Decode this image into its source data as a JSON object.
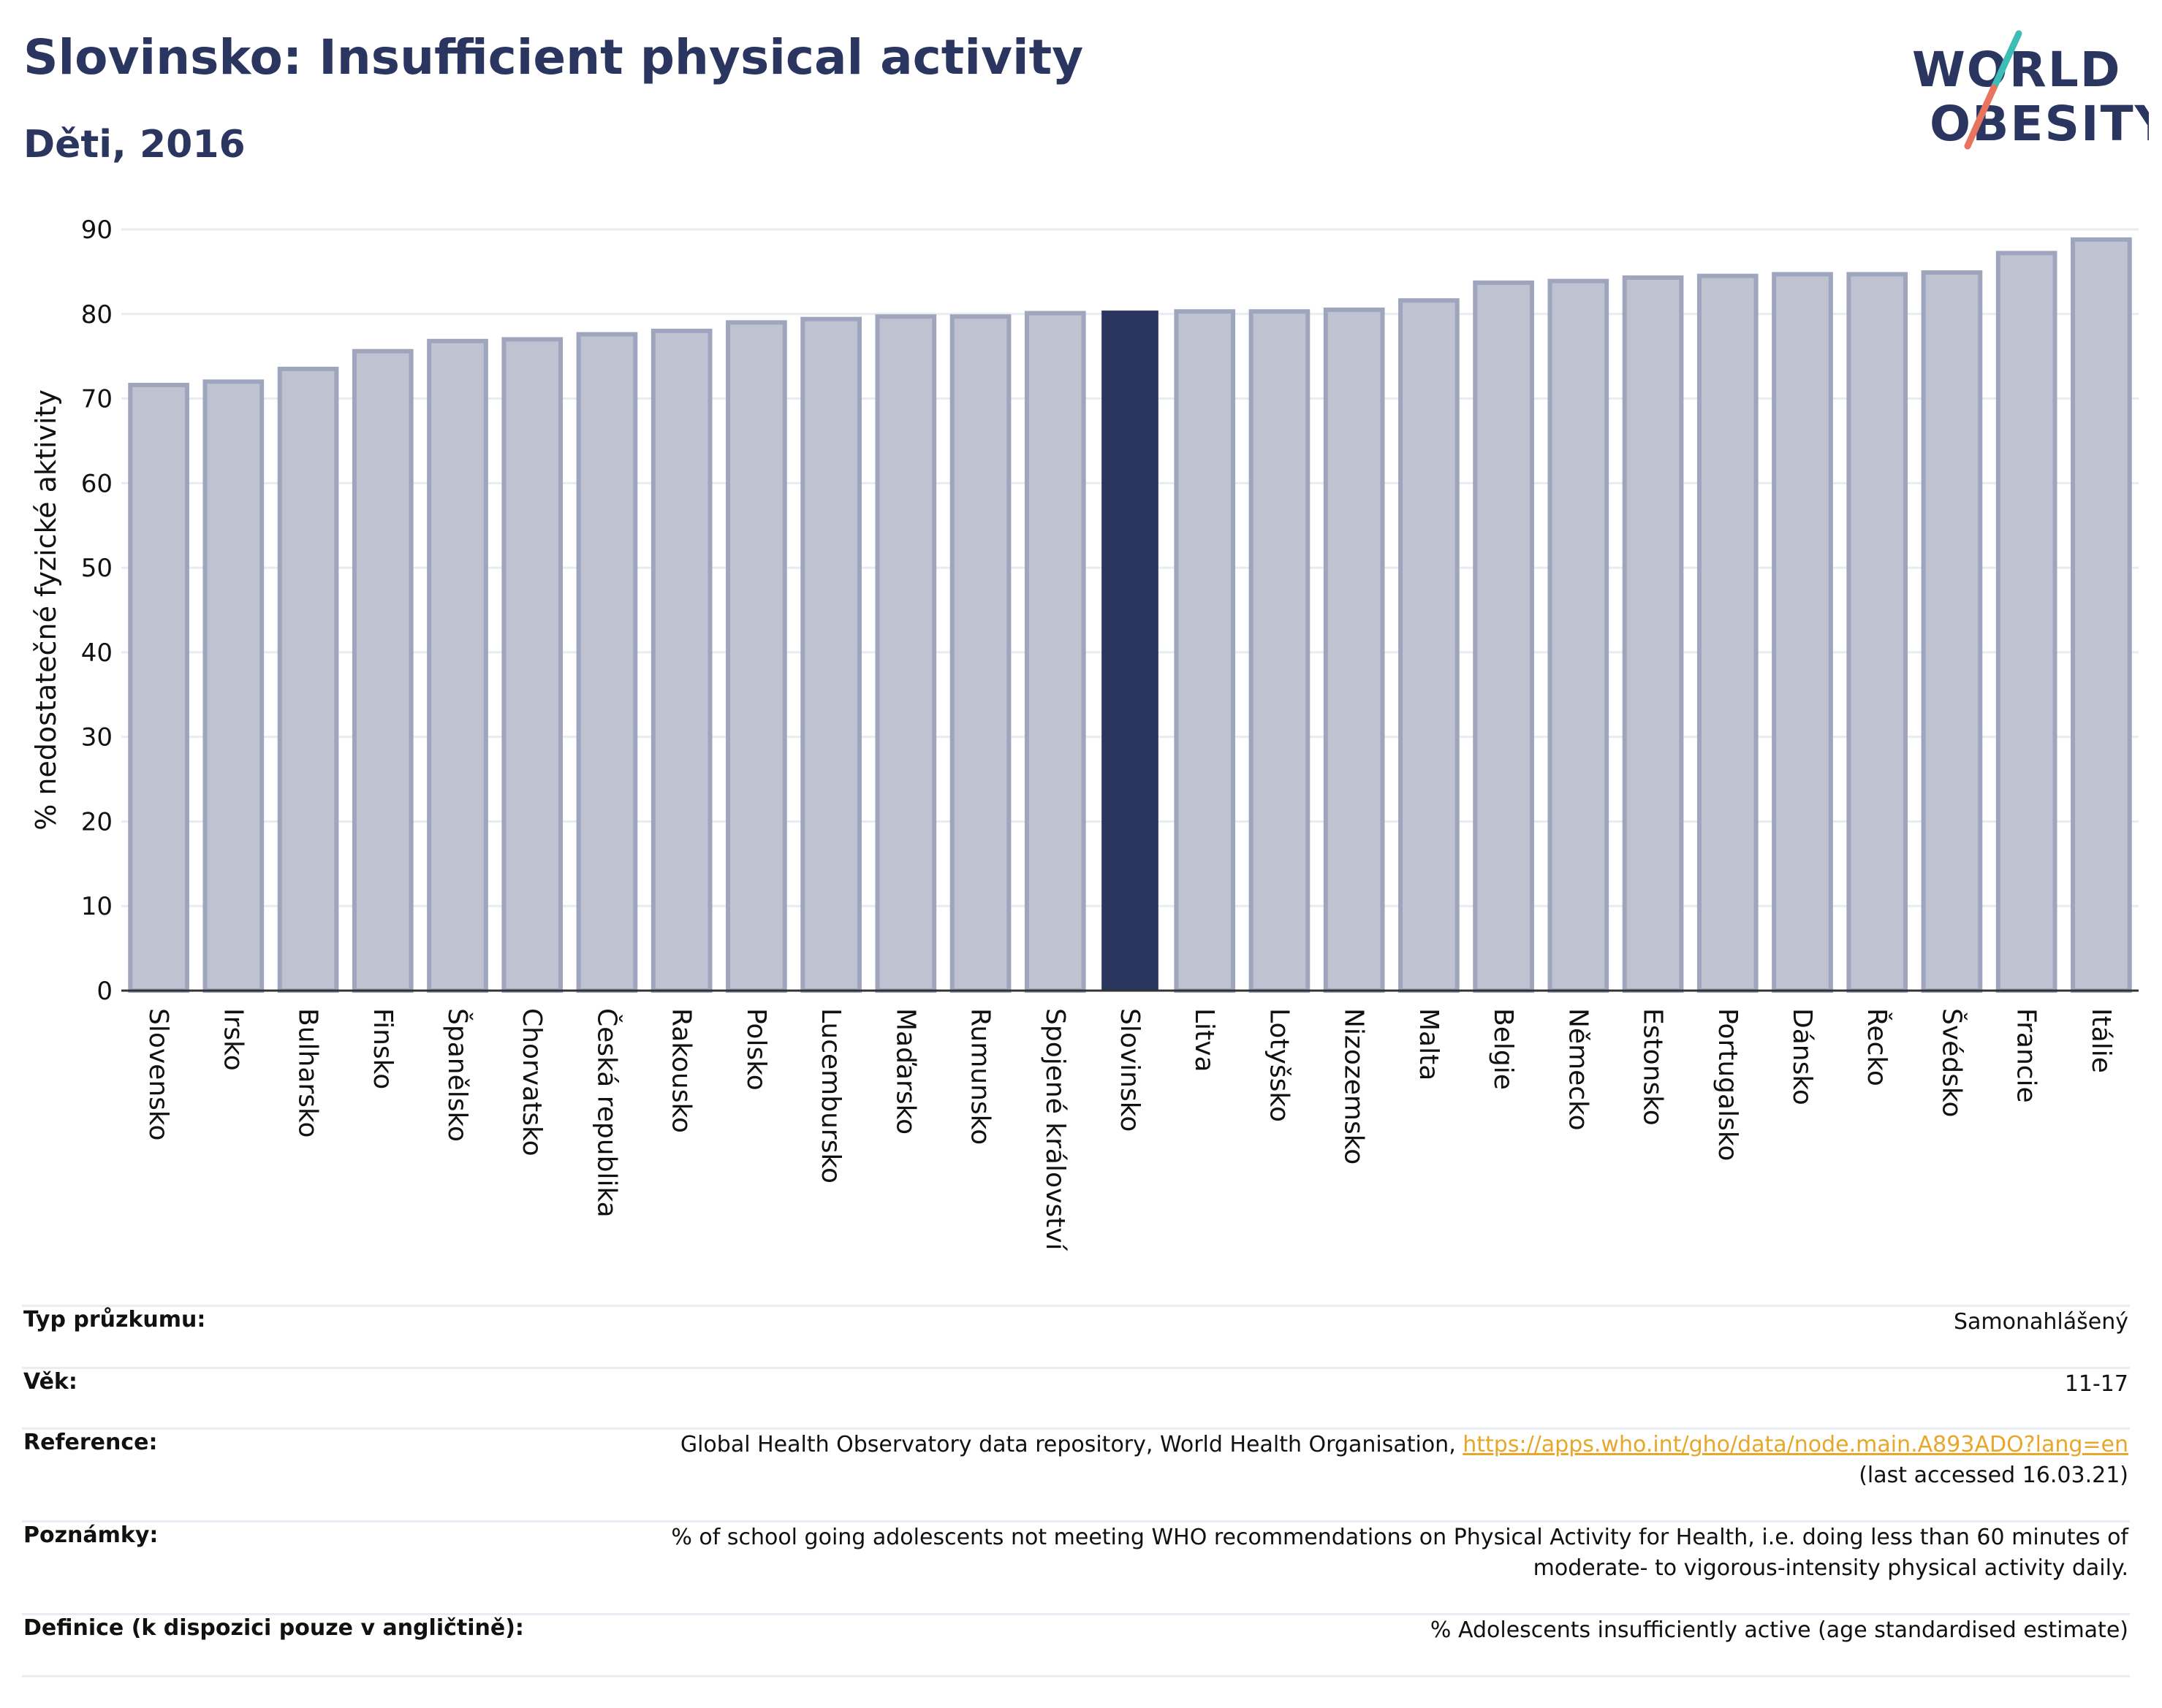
{
  "header": {
    "title": "Slovinsko: Insufficient physical activity",
    "subtitle": "Děti, 2016",
    "logo_line1": "WORLD",
    "logo_line2": "OBESITY"
  },
  "colors": {
    "bar": "#bfc3d1",
    "bar_stroke": "#9ea5bd",
    "highlight": "#2a3560",
    "grid": "#e8ebf0",
    "axis": "#333333",
    "title": "#2a3560",
    "link": "#e7a72a"
  },
  "chart_data": {
    "type": "bar",
    "title": "Slovinsko: Insufficient physical activity",
    "subtitle": "Děti, 2016",
    "xlabel": "",
    "ylabel": "% nedostatečné fyzické aktivity",
    "ylim": [
      0,
      90
    ],
    "yticks": [
      0,
      10,
      20,
      30,
      40,
      50,
      60,
      70,
      80,
      90
    ],
    "grid": true,
    "highlight_category": "Slovinsko",
    "highlight_index": 13,
    "categories": [
      "Slovensko",
      "Irsko",
      "Bulharsko",
      "Finsko",
      "Španělsko",
      "Chorvatsko",
      "Česká republika",
      "Rakousko",
      "Polsko",
      "Lucembursko",
      "Maďarsko",
      "Rumunsko",
      "Spojené království",
      "Slovinsko",
      "Litva",
      "Lotyšsko",
      "Nizozemsko",
      "Malta",
      "Belgie",
      "Německo",
      "Estonsko",
      "Portugalsko",
      "Dánsko",
      "Řecko",
      "Švédsko",
      "Francie",
      "Itálie"
    ],
    "values": [
      71.6,
      72.0,
      73.5,
      75.6,
      76.8,
      77.0,
      77.6,
      78.0,
      79.0,
      79.4,
      79.7,
      79.7,
      80.1,
      80.4,
      80.3,
      80.3,
      80.5,
      81.6,
      83.7,
      83.9,
      84.3,
      84.5,
      84.7,
      84.7,
      84.9,
      87.2,
      88.8
    ]
  },
  "meta": {
    "survey_label": "Typ průzkumu:",
    "survey_value": "Samonahlášený",
    "age_label": "Věk:",
    "age_value": "11-17",
    "reference_label": "Reference:",
    "reference_text": "Global Health Observatory data repository, World Health Organisation, ",
    "reference_link": "https://apps.who.int/gho/data/node.main.A893ADO?lang=en",
    "reference_accessed": "(last accessed 16.03.21)",
    "notes_label": "Poznámky:",
    "notes_line1": "% of school going adolescents not meeting WHO recommendations on Physical Activity for Health, i.e. doing less than 60 minutes of",
    "notes_line2": "moderate- to vigorous-intensity physical activity daily.",
    "definition_label": "Definice (k dispozici pouze v angličtině):",
    "definition_value": "% Adolescents insufficiently active (age standardised estimate)"
  }
}
